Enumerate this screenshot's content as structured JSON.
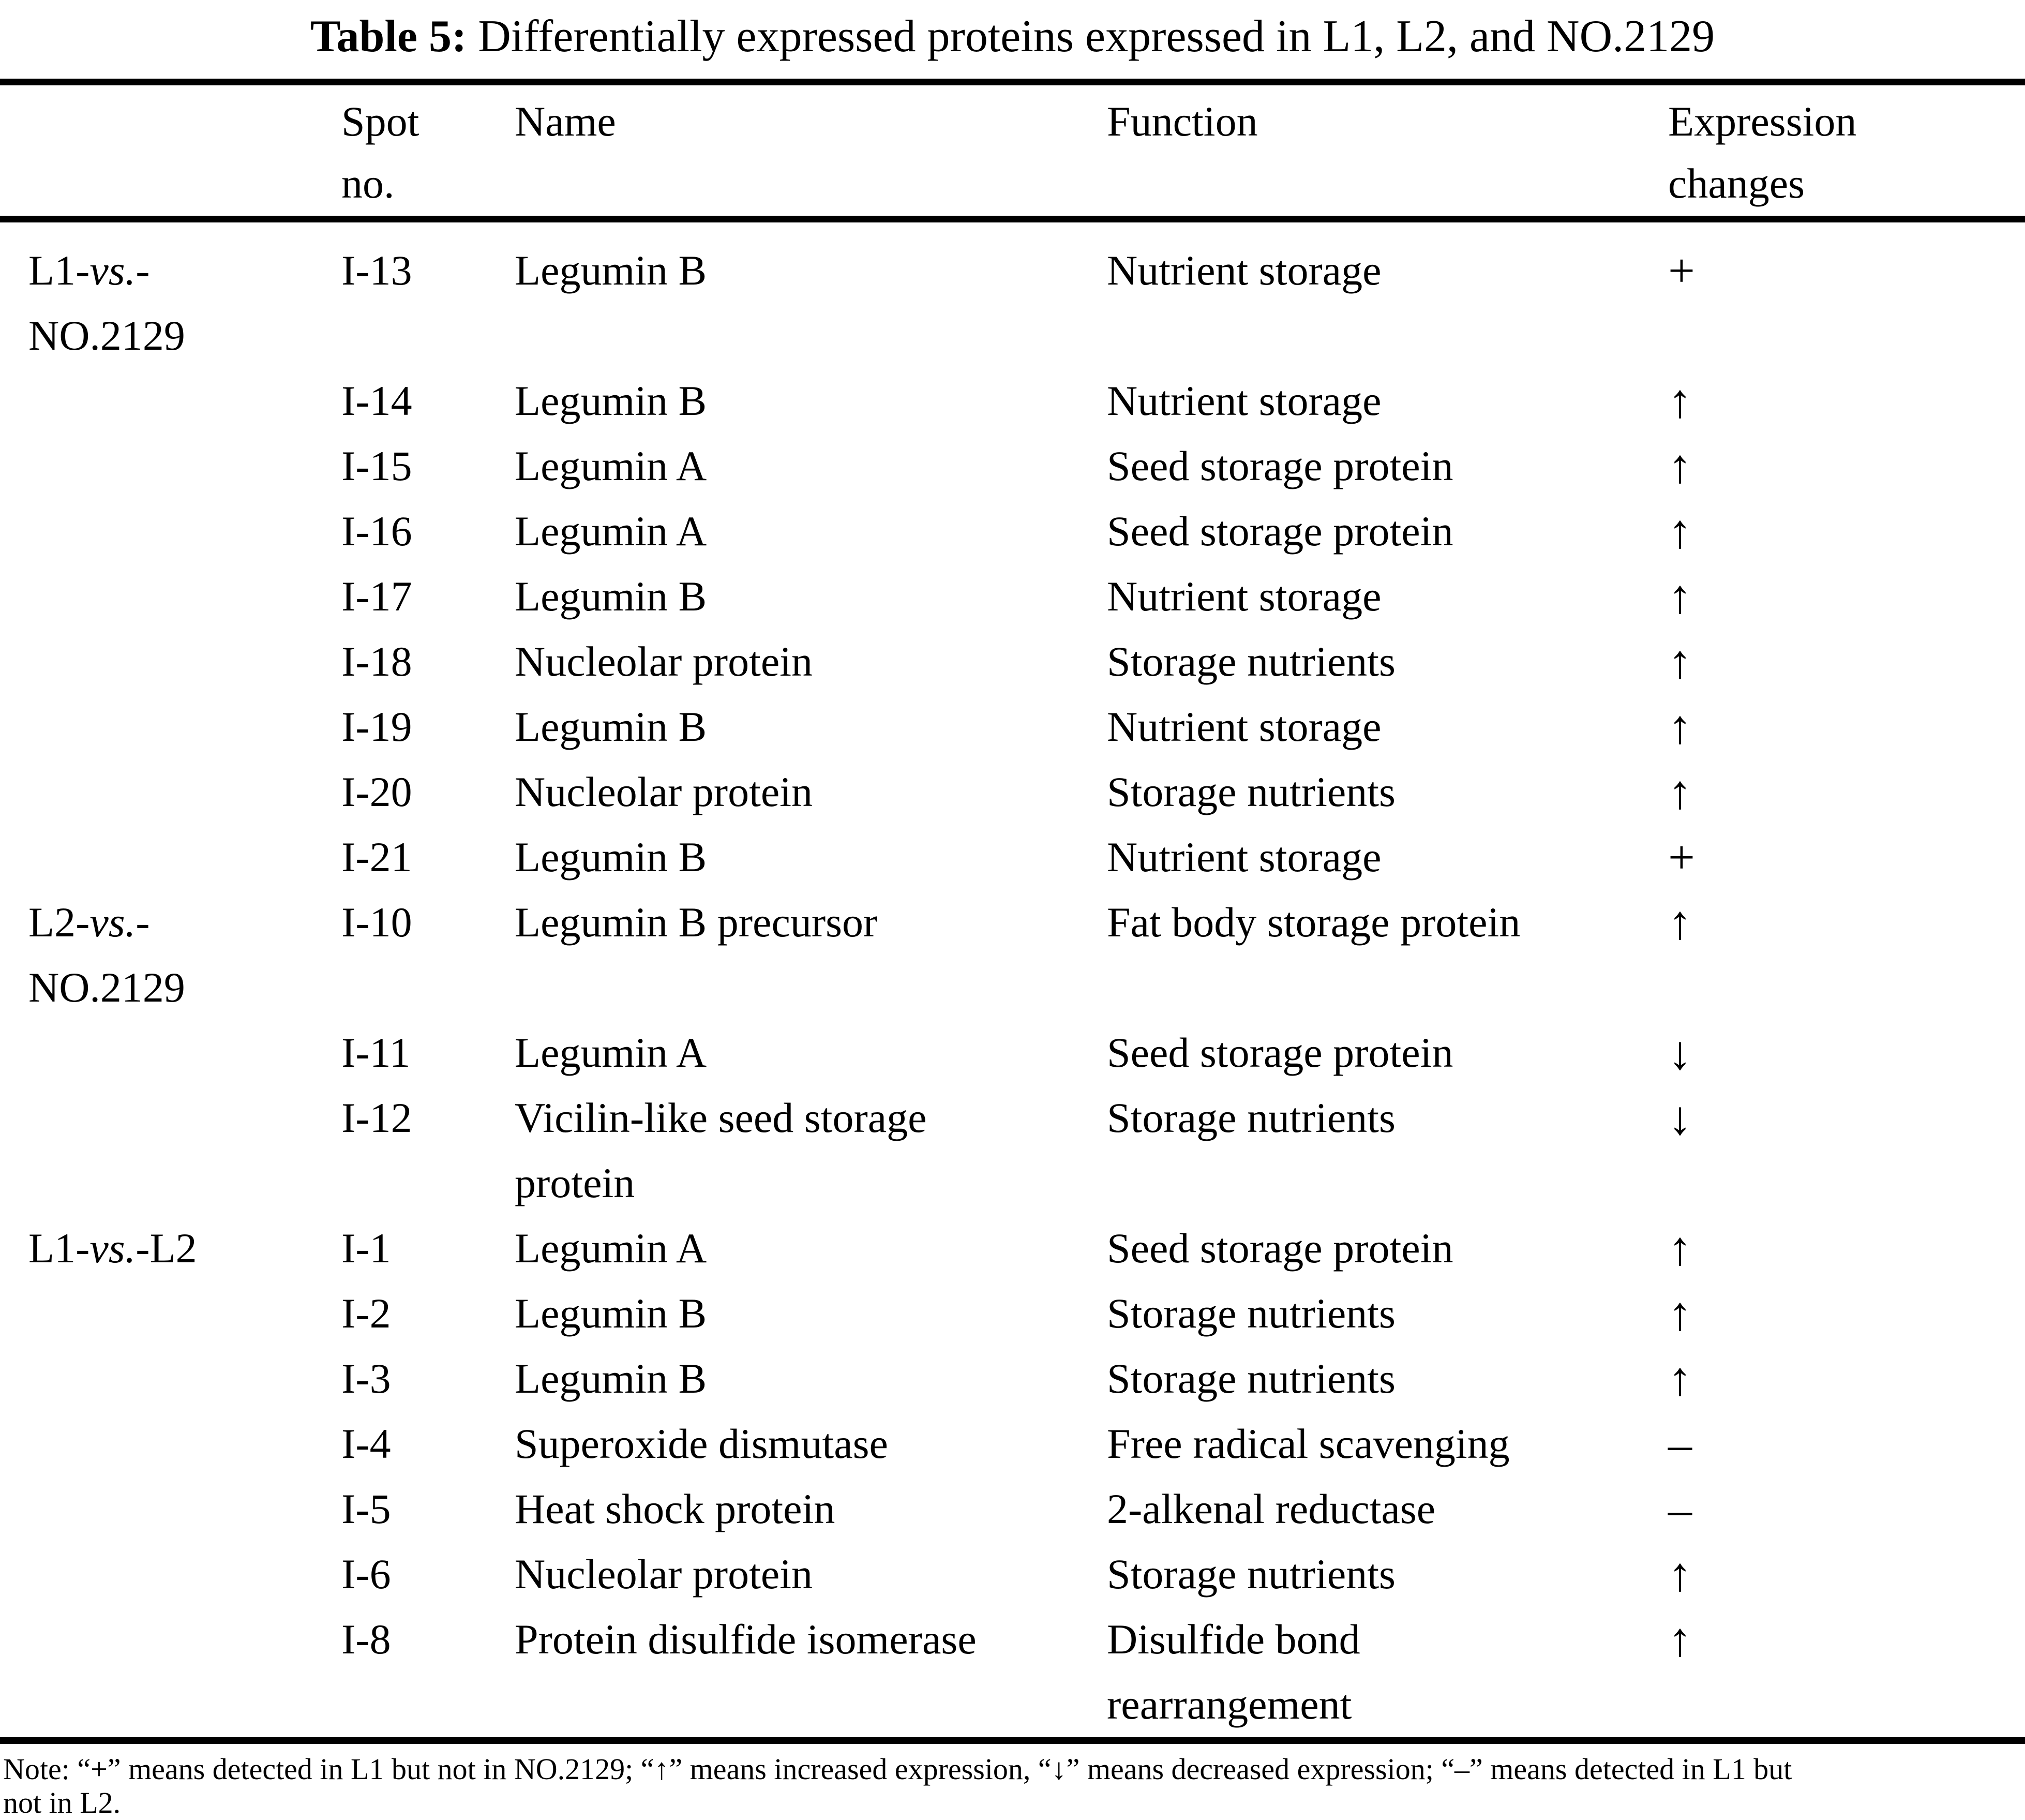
{
  "title": {
    "label": "Table 5:",
    "caption": " Differentially expressed proteins expressed in L1, L2, and NO.2129"
  },
  "header": {
    "spot_line1": "Spot",
    "spot_line2": "no.",
    "name": "Name",
    "function": "Function",
    "expression_line1": "Expression",
    "expression_line2": "changes"
  },
  "groups": [
    {
      "label_pre": "L1-",
      "label_vs": "vs.",
      "label_post": "-",
      "label_line2": "NO.2129",
      "rows": [
        {
          "spot": "I-13",
          "name": "Legumin B",
          "function": "Nutrient storage",
          "change": "+"
        },
        {
          "spot": "I-14",
          "name": "Legumin B",
          "function": "Nutrient storage",
          "change": "↑"
        },
        {
          "spot": "I-15",
          "name": "Legumin A",
          "function": "Seed storage protein",
          "change": "↑"
        },
        {
          "spot": "I-16",
          "name": "Legumin A",
          "function": "Seed storage protein",
          "change": "↑"
        },
        {
          "spot": "I-17",
          "name": "Legumin B",
          "function": "Nutrient storage",
          "change": "↑"
        },
        {
          "spot": "I-18",
          "name": "Nucleolar protein",
          "function": "Storage nutrients",
          "change": "↑"
        },
        {
          "spot": "I-19",
          "name": "Legumin B",
          "function": "Nutrient storage",
          "change": "↑"
        },
        {
          "spot": "I-20",
          "name": "Nucleolar protein",
          "function": "Storage nutrients",
          "change": "↑"
        },
        {
          "spot": "I-21",
          "name": "Legumin B",
          "function": "Nutrient storage",
          "change": "+"
        }
      ]
    },
    {
      "label_pre": "L2-",
      "label_vs": "vs.",
      "label_post": "-",
      "label_line2": "NO.2129",
      "rows": [
        {
          "spot": "I-10",
          "name": "Legumin B precursor",
          "function": "Fat body storage protein",
          "change": "↑"
        },
        {
          "spot": "I-11",
          "name": "Legumin A",
          "function": "Seed storage protein",
          "change": "↓"
        },
        {
          "spot": "I-12",
          "name": "Vicilin-like seed storage",
          "name_line2": "protein",
          "function": "Storage nutrients",
          "change": "↓"
        }
      ]
    },
    {
      "label_pre": "L1-",
      "label_vs": "vs.",
      "label_post": "-L2",
      "label_line2": "",
      "rows": [
        {
          "spot": "I-1",
          "name": "Legumin A",
          "function": "Seed storage protein",
          "change": "↑"
        },
        {
          "spot": "I-2",
          "name": "Legumin B",
          "function": "Storage nutrients",
          "change": "↑"
        },
        {
          "spot": "I-3",
          "name": "Legumin B",
          "function": "Storage nutrients",
          "change": "↑"
        },
        {
          "spot": "I-4",
          "name": "Superoxide dismutase",
          "function": "Free radical scavenging",
          "change": "–"
        },
        {
          "spot": "I-5",
          "name": "Heat shock protein",
          "function": "2-alkenal reductase",
          "change": "–"
        },
        {
          "spot": "I-6",
          "name": "Nucleolar protein",
          "function": "Storage nutrients",
          "change": "↑"
        },
        {
          "spot": "I-8",
          "name": "Protein disulfide isomerase",
          "function": "Disulfide bond",
          "function_line2": "rearrangement",
          "change": "↑"
        }
      ]
    }
  ],
  "note": {
    "line1": "Note: “+” means detected in L1 but not in NO.2129; “↑” means increased expression, “↓” means decreased expression; “–” means detected in L1 but",
    "line2": "not in L2."
  }
}
